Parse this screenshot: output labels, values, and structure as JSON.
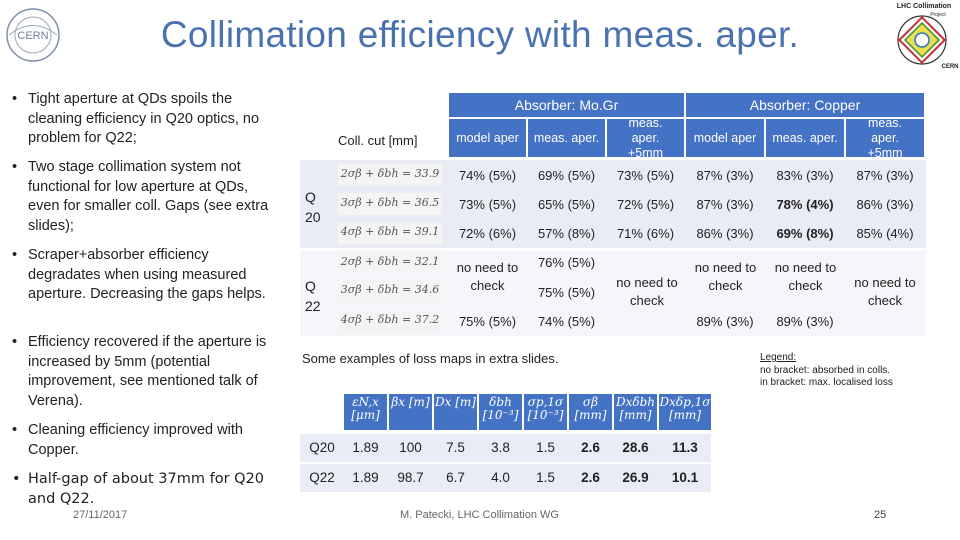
{
  "header": {
    "title": "Collimation efficiency with meas. aper.",
    "cern_logo_text": "CERN",
    "lhc_logo_text": "LHC Collimation Project"
  },
  "bullets": [
    "Tight aperture at QDs spoils the cleaning efficiency in Q20 optics, no problem for Q22;",
    "Two stage collimation system not functional for low aperture at QDs, even for smaller coll. Gaps (see extra slides);",
    "Scraper+absorber efficiency degradates when using measured aperture. Decreasing the gaps helps.",
    "Efficiency recovered if the aperture is increased by 5mm (potential improvement, see mentioned talk of Verena).",
    "Cleaning efficiency improved with Copper.",
    "Half-gap of about 37mm for Q20 and Q22."
  ],
  "table1": {
    "coll_cut_label": "Coll. cut [mm]",
    "group_headers": [
      "Absorber: Mo.Gr",
      "Absorber: Copper"
    ],
    "col_headers": [
      "model aper",
      "meas. aper.",
      "meas. aper. +5mm",
      "model aper",
      "meas. aper.",
      "meas. aper. +5mm"
    ],
    "row_groups": [
      "Q 20",
      "Q 22"
    ],
    "formulas": [
      "2σβ + δbh = 33.9",
      "3σβ + δbh = 36.5",
      "4σβ + δbh = 39.1",
      "2σβ + δbh = 32.1",
      "3σβ + δbh = 34.6",
      "4σβ + δbh = 37.2"
    ],
    "q20_rows": [
      [
        "74% (5%)",
        "69% (5%)",
        "73% (5%)",
        "87% (3%)",
        "83% (3%)",
        "87% (3%)"
      ],
      [
        "73% (5%)",
        "65% (5%)",
        "72% (5%)",
        "87% (3%)",
        "78% (4%)",
        "86% (3%)"
      ],
      [
        "72% (6%)",
        "57% (8%)",
        "71% (6%)",
        "86% (3%)",
        "69% (8%)",
        "85% (4%)"
      ]
    ],
    "q22": {
      "no_need": "no need to check",
      "mogr_meas": [
        "76% (5%)",
        "75% (5%)",
        "74% (5%)"
      ],
      "mogr_model_last": "75% (5%)",
      "cu_model_last": "89% (3%)",
      "cu_meas_last": "89% (3%)"
    }
  },
  "note": "Some examples of loss maps in extra slides.",
  "legend": {
    "heading": "Legend:",
    "line1": "no bracket: absorbed in colls.",
    "line2": "in bracket: max. localised loss"
  },
  "table2": {
    "headers": [
      "εN,x [μm]",
      "βx [m]",
      "Dx [m]",
      "δbh [10⁻³]",
      "σp,1σ [10⁻³]",
      "σβ [mm]",
      "Dxδbh [mm]",
      "Dxδp,1σ [mm]"
    ],
    "rows": [
      {
        "label": "Q20",
        "values": [
          "1.89",
          "100",
          "7.5",
          "3.8",
          "1.5",
          "2.6",
          "28.6",
          "11.3"
        ]
      },
      {
        "label": "Q22",
        "values": [
          "1.89",
          "98.7",
          "6.7",
          "4.0",
          "1.5",
          "2.6",
          "26.9",
          "10.1"
        ]
      }
    ]
  },
  "footer": {
    "date": "27/11/2017",
    "author": "M. Patecki, LHC Collimation WG",
    "page": "25"
  },
  "colors": {
    "title": "#4a72b0",
    "header_blue": "#4472c4"
  }
}
